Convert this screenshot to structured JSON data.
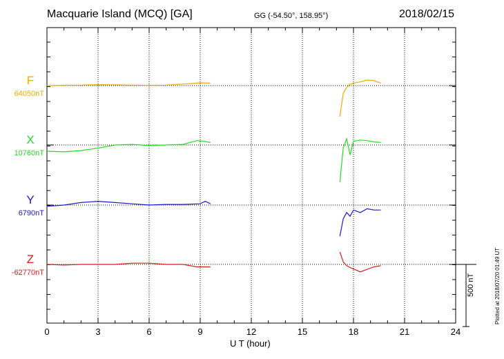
{
  "header": {
    "title": "Macquarie Island (MCQ)  [GA]",
    "coords": "GG (-54.50°, 158.95°)",
    "date": "2018/02/15"
  },
  "chart_data": {
    "type": "line",
    "xlabel": "U T (hour)",
    "xlim": [
      0,
      24
    ],
    "x_ticks": [
      "0",
      "3",
      "6",
      "9",
      "12",
      "15",
      "18",
      "21",
      "24"
    ],
    "grid": true,
    "scale_bar": {
      "label": "500 nT",
      "value_nT": 500
    },
    "data_gap": [
      9.6,
      17.2
    ],
    "series": [
      {
        "name": "F",
        "baseline_label": "64050nT",
        "color": "#f0a800",
        "points": [
          [
            0,
            0
          ],
          [
            1,
            2
          ],
          [
            2,
            4
          ],
          [
            3,
            8
          ],
          [
            4,
            6
          ],
          [
            5,
            4
          ],
          [
            6,
            2
          ],
          [
            7,
            4
          ],
          [
            8,
            12
          ],
          [
            9,
            22
          ],
          [
            9.6,
            20
          ],
          [
            17.2,
            -250
          ],
          [
            17.4,
            -60
          ],
          [
            17.6,
            -15
          ],
          [
            17.8,
            10
          ],
          [
            18,
            20
          ],
          [
            18.4,
            30
          ],
          [
            18.8,
            45
          ],
          [
            19.2,
            40
          ],
          [
            19.6,
            20
          ]
        ]
      },
      {
        "name": "X",
        "baseline_label": "10760nT",
        "color": "#22dd22",
        "points": [
          [
            0,
            -50
          ],
          [
            1,
            -55
          ],
          [
            2,
            -45
          ],
          [
            3,
            -25
          ],
          [
            4,
            0
          ],
          [
            5,
            5
          ],
          [
            6,
            -5
          ],
          [
            7,
            0
          ],
          [
            8,
            5
          ],
          [
            8.8,
            35
          ],
          [
            9.2,
            30
          ],
          [
            9.6,
            20
          ],
          [
            17.2,
            -300
          ],
          [
            17.4,
            -20
          ],
          [
            17.6,
            50
          ],
          [
            17.8,
            -80
          ],
          [
            18,
            30
          ],
          [
            18.4,
            40
          ],
          [
            18.8,
            35
          ],
          [
            19.2,
            25
          ],
          [
            19.6,
            20
          ]
        ]
      },
      {
        "name": "Y",
        "baseline_label": "6790nT",
        "color": "#1818d0",
        "points": [
          [
            0,
            -10
          ],
          [
            1,
            0
          ],
          [
            2,
            20
          ],
          [
            3,
            30
          ],
          [
            4,
            20
          ],
          [
            5,
            10
          ],
          [
            6,
            0
          ],
          [
            7,
            5
          ],
          [
            8,
            5
          ],
          [
            9,
            10
          ],
          [
            9.3,
            30
          ],
          [
            9.6,
            10
          ],
          [
            17.2,
            -250
          ],
          [
            17.4,
            -110
          ],
          [
            17.6,
            -60
          ],
          [
            17.8,
            -90
          ],
          [
            18,
            -40
          ],
          [
            18.4,
            -60
          ],
          [
            18.8,
            -30
          ],
          [
            19.2,
            -40
          ],
          [
            19.6,
            -40
          ]
        ]
      },
      {
        "name": "Z",
        "baseline_label": "-62770nT",
        "color": "#e01818",
        "points": [
          [
            0,
            0
          ],
          [
            1,
            -5
          ],
          [
            2,
            0
          ],
          [
            3,
            0
          ],
          [
            4,
            0
          ],
          [
            5,
            10
          ],
          [
            6,
            10
          ],
          [
            7,
            0
          ],
          [
            8,
            0
          ],
          [
            8.8,
            -20
          ],
          [
            9.6,
            -20
          ],
          [
            17.2,
            100
          ],
          [
            17.4,
            20
          ],
          [
            17.6,
            -10
          ],
          [
            17.8,
            -25
          ],
          [
            18.4,
            -60
          ],
          [
            18.8,
            -40
          ],
          [
            19.2,
            -20
          ],
          [
            19.6,
            -10
          ]
        ]
      }
    ]
  },
  "footer": {
    "plotted": "Plotted at 2018/07/20 01:49 UT"
  }
}
